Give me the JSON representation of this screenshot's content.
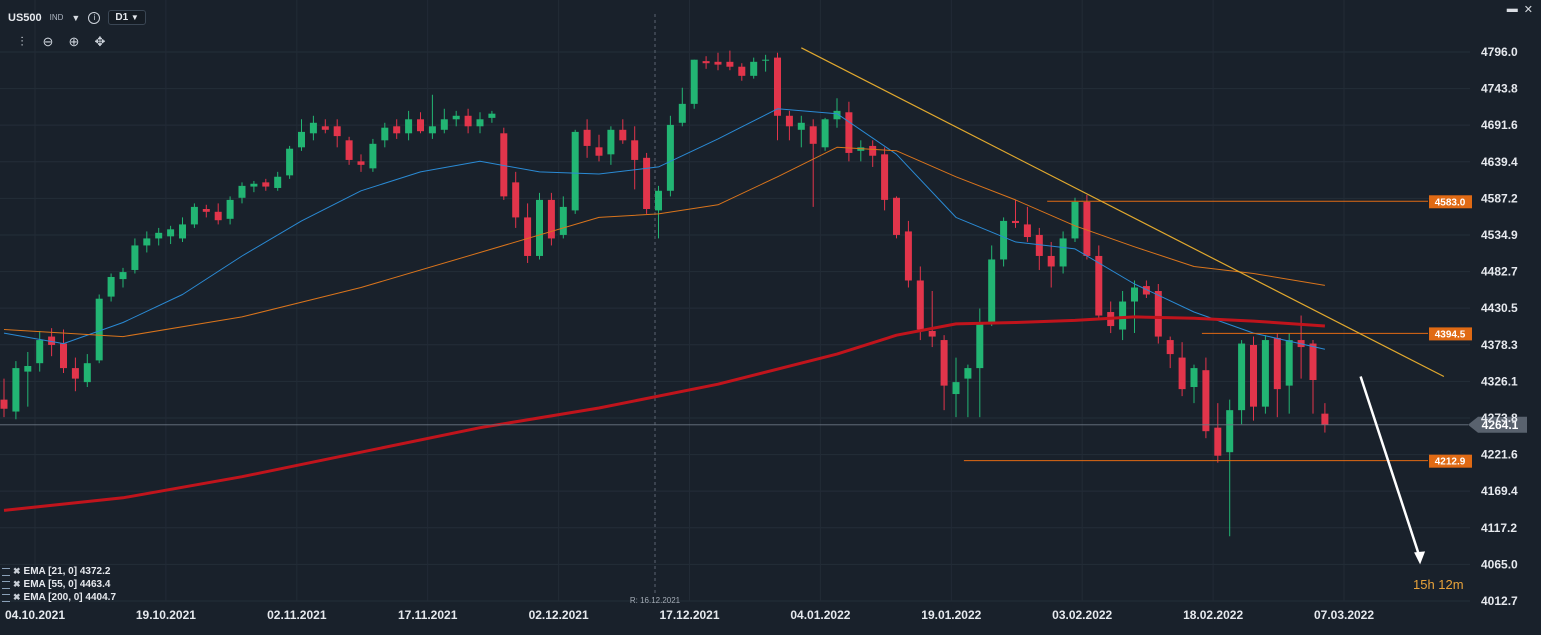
{
  "header": {
    "symbol": "US500",
    "exchange": "IND",
    "timeframe": "D1",
    "info_icon": "info-icon",
    "dropdown_icon": "chevron-down-icon"
  },
  "toolbar": {
    "icons": [
      "chart-type-icon",
      "zoom-out-icon",
      "zoom-in-icon",
      "crosshair-move-icon"
    ]
  },
  "window": {
    "icons": [
      "maximize-icon",
      "close-icon"
    ]
  },
  "legend": [
    {
      "label": "EMA [21, 0] 4372.2"
    },
    {
      "label": "EMA [55, 0] 4463.4"
    },
    {
      "label": "EMA [200, 0] 4404.7"
    }
  ],
  "timer": "15h 12m",
  "crosshair_label": "R: 16.12.2021",
  "colors": {
    "background": "#19212b",
    "up": "#22b573",
    "down": "#e2354b",
    "ema21": "#2a8ad4",
    "ema55": "#d9741c",
    "ema200": "#c0141c",
    "trendline": "#e0a82e",
    "level": "#e06a14",
    "price_tag": "#59626e"
  },
  "chart_data": {
    "type": "candlestick",
    "instrument": "US500",
    "timeframe": "D1",
    "x_tick_labels": [
      "04.10.2021",
      "19.10.2021",
      "02.11.2021",
      "17.11.2021",
      "02.12.2021",
      "17.12.2021",
      "04.01.2022",
      "19.01.2022",
      "03.02.2022",
      "18.02.2022",
      "07.03.2022"
    ],
    "y_tick_labels": [
      "4796.0",
      "4743.8",
      "4691.6",
      "4639.4",
      "4587.2",
      "4534.9",
      "4482.7",
      "4430.5",
      "4378.3",
      "4326.1",
      "4273.8",
      "4221.6",
      "4169.4",
      "4117.2",
      "4065.0",
      "4012.7"
    ],
    "ylim": [
      4012.7,
      4796.0
    ],
    "candles": [
      {
        "o": 4300,
        "h": 4330,
        "l": 4275,
        "c": 4287
      },
      {
        "o": 4283,
        "h": 4355,
        "l": 4272,
        "c": 4345
      },
      {
        "o": 4340,
        "h": 4368,
        "l": 4290,
        "c": 4348
      },
      {
        "o": 4352,
        "h": 4398,
        "l": 4340,
        "c": 4385
      },
      {
        "o": 4390,
        "h": 4402,
        "l": 4362,
        "c": 4378
      },
      {
        "o": 4380,
        "h": 4400,
        "l": 4338,
        "c": 4345
      },
      {
        "o": 4345,
        "h": 4360,
        "l": 4312,
        "c": 4330
      },
      {
        "o": 4325,
        "h": 4365,
        "l": 4318,
        "c": 4352
      },
      {
        "o": 4356,
        "h": 4450,
        "l": 4352,
        "c": 4444
      },
      {
        "o": 4447,
        "h": 4480,
        "l": 4440,
        "c": 4475
      },
      {
        "o": 4472,
        "h": 4488,
        "l": 4460,
        "c": 4482
      },
      {
        "o": 4485,
        "h": 4530,
        "l": 4480,
        "c": 4520
      },
      {
        "o": 4520,
        "h": 4540,
        "l": 4510,
        "c": 4530
      },
      {
        "o": 4530,
        "h": 4545,
        "l": 4520,
        "c": 4538
      },
      {
        "o": 4533,
        "h": 4548,
        "l": 4522,
        "c": 4543
      },
      {
        "o": 4530,
        "h": 4560,
        "l": 4525,
        "c": 4550
      },
      {
        "o": 4550,
        "h": 4580,
        "l": 4545,
        "c": 4575
      },
      {
        "o": 4572,
        "h": 4578,
        "l": 4560,
        "c": 4568
      },
      {
        "o": 4568,
        "h": 4580,
        "l": 4550,
        "c": 4556
      },
      {
        "o": 4558,
        "h": 4590,
        "l": 4550,
        "c": 4585
      },
      {
        "o": 4588,
        "h": 4610,
        "l": 4580,
        "c": 4605
      },
      {
        "o": 4604,
        "h": 4612,
        "l": 4596,
        "c": 4608
      },
      {
        "o": 4610,
        "h": 4615,
        "l": 4598,
        "c": 4604
      },
      {
        "o": 4602,
        "h": 4625,
        "l": 4598,
        "c": 4618
      },
      {
        "o": 4620,
        "h": 4662,
        "l": 4615,
        "c": 4658
      },
      {
        "o": 4660,
        "h": 4700,
        "l": 4655,
        "c": 4682
      },
      {
        "o": 4680,
        "h": 4705,
        "l": 4670,
        "c": 4695
      },
      {
        "o": 4690,
        "h": 4700,
        "l": 4680,
        "c": 4685
      },
      {
        "o": 4690,
        "h": 4700,
        "l": 4660,
        "c": 4676
      },
      {
        "o": 4670,
        "h": 4675,
        "l": 4635,
        "c": 4642
      },
      {
        "o": 4640,
        "h": 4650,
        "l": 4625,
        "c": 4635
      },
      {
        "o": 4630,
        "h": 4672,
        "l": 4625,
        "c": 4665
      },
      {
        "o": 4670,
        "h": 4695,
        "l": 4660,
        "c": 4688
      },
      {
        "o": 4690,
        "h": 4700,
        "l": 4672,
        "c": 4680
      },
      {
        "o": 4680,
        "h": 4712,
        "l": 4670,
        "c": 4700
      },
      {
        "o": 4700,
        "h": 4710,
        "l": 4680,
        "c": 4683
      },
      {
        "o": 4680,
        "h": 4735,
        "l": 4672,
        "c": 4690
      },
      {
        "o": 4685,
        "h": 4715,
        "l": 4680,
        "c": 4700
      },
      {
        "o": 4700,
        "h": 4712,
        "l": 4690,
        "c": 4705
      },
      {
        "o": 4705,
        "h": 4715,
        "l": 4680,
        "c": 4690
      },
      {
        "o": 4690,
        "h": 4710,
        "l": 4680,
        "c": 4700
      },
      {
        "o": 4702,
        "h": 4712,
        "l": 4695,
        "c": 4708
      },
      {
        "o": 4680,
        "h": 4688,
        "l": 4585,
        "c": 4590
      },
      {
        "o": 4610,
        "h": 4625,
        "l": 4545,
        "c": 4560
      },
      {
        "o": 4560,
        "h": 4580,
        "l": 4495,
        "c": 4505
      },
      {
        "o": 4505,
        "h": 4595,
        "l": 4500,
        "c": 4585
      },
      {
        "o": 4585,
        "h": 4595,
        "l": 4520,
        "c": 4530
      },
      {
        "o": 4535,
        "h": 4590,
        "l": 4530,
        "c": 4575
      },
      {
        "o": 4570,
        "h": 4685,
        "l": 4565,
        "c": 4682
      },
      {
        "o": 4685,
        "h": 4700,
        "l": 4645,
        "c": 4662
      },
      {
        "o": 4660,
        "h": 4678,
        "l": 4640,
        "c": 4648
      },
      {
        "o": 4650,
        "h": 4690,
        "l": 4635,
        "c": 4685
      },
      {
        "o": 4685,
        "h": 4700,
        "l": 4665,
        "c": 4670
      },
      {
        "o": 4670,
        "h": 4690,
        "l": 4600,
        "c": 4642
      },
      {
        "o": 4645,
        "h": 4652,
        "l": 4565,
        "c": 4572
      },
      {
        "o": 4570,
        "h": 4605,
        "l": 4530,
        "c": 4598
      },
      {
        "o": 4598,
        "h": 4705,
        "l": 4590,
        "c": 4692
      },
      {
        "o": 4695,
        "h": 4745,
        "l": 4690,
        "c": 4722
      },
      {
        "o": 4722,
        "h": 4785,
        "l": 4715,
        "c": 4785
      },
      {
        "o": 4783,
        "h": 4790,
        "l": 4772,
        "c": 4780
      },
      {
        "o": 4782,
        "h": 4795,
        "l": 4770,
        "c": 4778
      },
      {
        "o": 4782,
        "h": 4798,
        "l": 4770,
        "c": 4775
      },
      {
        "o": 4775,
        "h": 4780,
        "l": 4755,
        "c": 4762
      },
      {
        "o": 4762,
        "h": 4788,
        "l": 4758,
        "c": 4782
      },
      {
        "o": 4785,
        "h": 4792,
        "l": 4768,
        "c": 4785
      },
      {
        "o": 4788,
        "h": 4795,
        "l": 4670,
        "c": 4705
      },
      {
        "o": 4705,
        "h": 4712,
        "l": 4670,
        "c": 4690
      },
      {
        "o": 4685,
        "h": 4705,
        "l": 4660,
        "c": 4695
      },
      {
        "o": 4690,
        "h": 4700,
        "l": 4575,
        "c": 4665
      },
      {
        "o": 4660,
        "h": 4702,
        "l": 4655,
        "c": 4700
      },
      {
        "o": 4700,
        "h": 4730,
        "l": 4688,
        "c": 4712
      },
      {
        "o": 4710,
        "h": 4725,
        "l": 4640,
        "c": 4652
      },
      {
        "o": 4655,
        "h": 4670,
        "l": 4640,
        "c": 4660
      },
      {
        "o": 4662,
        "h": 4670,
        "l": 4632,
        "c": 4648
      },
      {
        "o": 4650,
        "h": 4660,
        "l": 4570,
        "c": 4585
      },
      {
        "o": 4588,
        "h": 4590,
        "l": 4530,
        "c": 4535
      },
      {
        "o": 4540,
        "h": 4555,
        "l": 4460,
        "c": 4470
      },
      {
        "o": 4470,
        "h": 4490,
        "l": 4385,
        "c": 4400
      },
      {
        "o": 4398,
        "h": 4455,
        "l": 4375,
        "c": 4390
      },
      {
        "o": 4385,
        "h": 4392,
        "l": 4285,
        "c": 4320
      },
      {
        "o": 4308,
        "h": 4360,
        "l": 4275,
        "c": 4325
      },
      {
        "o": 4330,
        "h": 4350,
        "l": 4275,
        "c": 4345
      },
      {
        "o": 4345,
        "h": 4430,
        "l": 4275,
        "c": 4410
      },
      {
        "o": 4410,
        "h": 4520,
        "l": 4405,
        "c": 4500
      },
      {
        "o": 4500,
        "h": 4560,
        "l": 4490,
        "c": 4555
      },
      {
        "o": 4555,
        "h": 4585,
        "l": 4545,
        "c": 4552
      },
      {
        "o": 4550,
        "h": 4575,
        "l": 4525,
        "c": 4532
      },
      {
        "o": 4535,
        "h": 4545,
        "l": 4485,
        "c": 4505
      },
      {
        "o": 4505,
        "h": 4525,
        "l": 4460,
        "c": 4490
      },
      {
        "o": 4490,
        "h": 4540,
        "l": 4480,
        "c": 4530
      },
      {
        "o": 4530,
        "h": 4588,
        "l": 4525,
        "c": 4582
      },
      {
        "o": 4582,
        "h": 4592,
        "l": 4500,
        "c": 4505
      },
      {
        "o": 4505,
        "h": 4520,
        "l": 4415,
        "c": 4420
      },
      {
        "o": 4425,
        "h": 4440,
        "l": 4395,
        "c": 4405
      },
      {
        "o": 4400,
        "h": 4455,
        "l": 4385,
        "c": 4440
      },
      {
        "o": 4440,
        "h": 4470,
        "l": 4395,
        "c": 4460
      },
      {
        "o": 4462,
        "h": 4470,
        "l": 4445,
        "c": 4450
      },
      {
        "o": 4455,
        "h": 4465,
        "l": 4380,
        "c": 4390
      },
      {
        "o": 4385,
        "h": 4390,
        "l": 4345,
        "c": 4365
      },
      {
        "o": 4360,
        "h": 4382,
        "l": 4305,
        "c": 4315
      },
      {
        "o": 4318,
        "h": 4350,
        "l": 4295,
        "c": 4345
      },
      {
        "o": 4342,
        "h": 4360,
        "l": 4245,
        "c": 4255
      },
      {
        "o": 4260,
        "h": 4295,
        "l": 4210,
        "c": 4220
      },
      {
        "o": 4225,
        "h": 4300,
        "l": 4105,
        "c": 4285
      },
      {
        "o": 4285,
        "h": 4385,
        "l": 4265,
        "c": 4380
      },
      {
        "o": 4378,
        "h": 4390,
        "l": 4270,
        "c": 4290
      },
      {
        "o": 4290,
        "h": 4392,
        "l": 4280,
        "c": 4385
      },
      {
        "o": 4388,
        "h": 4395,
        "l": 4275,
        "c": 4315
      },
      {
        "o": 4320,
        "h": 4395,
        "l": 4280,
        "c": 4385
      },
      {
        "o": 4385,
        "h": 4420,
        "l": 4330,
        "c": 4375
      },
      {
        "o": 4380,
        "h": 4385,
        "l": 4280,
        "c": 4328
      },
      {
        "o": 4280,
        "h": 4295,
        "l": 4253,
        "c": 4264
      }
    ],
    "series": [
      {
        "name": "EMA [21, 0] 4372.2",
        "type": "line",
        "points": [
          [
            0,
            4395
          ],
          [
            5,
            4380
          ],
          [
            10,
            4410
          ],
          [
            15,
            4450
          ],
          [
            20,
            4505
          ],
          [
            25,
            4555
          ],
          [
            30,
            4598
          ],
          [
            35,
            4625
          ],
          [
            40,
            4640
          ],
          [
            45,
            4625
          ],
          [
            50,
            4622
          ],
          [
            55,
            4632
          ],
          [
            60,
            4672
          ],
          [
            65,
            4715
          ],
          [
            70,
            4708
          ],
          [
            75,
            4650
          ],
          [
            80,
            4560
          ],
          [
            85,
            4525
          ],
          [
            90,
            4515
          ],
          [
            95,
            4465
          ],
          [
            100,
            4425
          ],
          [
            105,
            4395
          ],
          [
            111,
            4372
          ]
        ]
      },
      {
        "name": "EMA [55, 0] 4463.4",
        "type": "line",
        "points": [
          [
            0,
            4400
          ],
          [
            10,
            4390
          ],
          [
            20,
            4418
          ],
          [
            30,
            4460
          ],
          [
            40,
            4510
          ],
          [
            50,
            4560
          ],
          [
            55,
            4565
          ],
          [
            60,
            4578
          ],
          [
            65,
            4618
          ],
          [
            70,
            4660
          ],
          [
            75,
            4655
          ],
          [
            80,
            4618
          ],
          [
            85,
            4585
          ],
          [
            90,
            4548
          ],
          [
            95,
            4518
          ],
          [
            100,
            4490
          ],
          [
            105,
            4480
          ],
          [
            111,
            4463
          ]
        ]
      },
      {
        "name": "EMA [200, 0] 4404.7",
        "type": "line",
        "points": [
          [
            0,
            4142
          ],
          [
            10,
            4160
          ],
          [
            20,
            4190
          ],
          [
            30,
            4225
          ],
          [
            40,
            4260
          ],
          [
            50,
            4288
          ],
          [
            60,
            4322
          ],
          [
            70,
            4365
          ],
          [
            75,
            4392
          ],
          [
            80,
            4408
          ],
          [
            85,
            4410
          ],
          [
            90,
            4413
          ],
          [
            95,
            4418
          ],
          [
            100,
            4416
          ],
          [
            105,
            4412
          ],
          [
            111,
            4405
          ]
        ]
      }
    ],
    "horizontal_levels": [
      {
        "label": "4583.0",
        "value": 4583.0,
        "from_index": 88
      },
      {
        "label": "4394.5",
        "value": 4394.5,
        "from_index": 101
      },
      {
        "label": "4212.9",
        "value": 4212.9,
        "from_index": 81
      }
    ],
    "current_price": {
      "label": "4264.1",
      "value": 4264.1
    },
    "trendline": {
      "from": [
        67,
        4802
      ],
      "to": [
        121,
        4333
      ]
    },
    "projection_arrow": {
      "from": [
        114,
        4333
      ],
      "to": [
        119,
        4065
      ]
    }
  }
}
